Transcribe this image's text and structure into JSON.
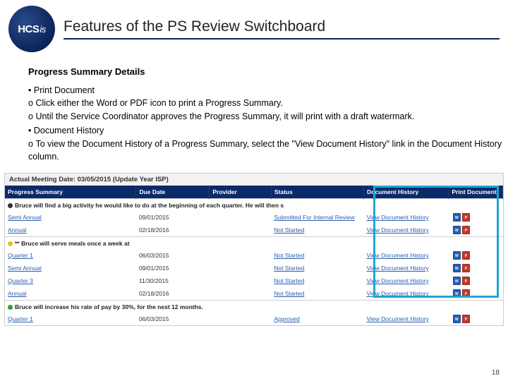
{
  "logo_text": "HCS",
  "logo_suffix": "is",
  "page_title": "Features of the PS Review Switchboard",
  "section_subtitle": "Progress Summary Details",
  "bullets": {
    "b1": "Print Document",
    "b1s1": "Click either the Word or PDF icon to print a Progress Summary.",
    "b1s2": "Until the Service Coordinator approves the Progress Summary, it will print with a draft watermark.",
    "b2": "Document History",
    "b2s1": "To view the Document History of a Progress Summary, select the \"View Document History\" link in the Document History column."
  },
  "colors": {
    "header_underline": "#0a2458",
    "table_header_bg": "#0a2a6a",
    "highlight_border": "#1ba8d4",
    "link": "#2a5db0"
  },
  "screenshot": {
    "meeting_bar": "Actual Meeting Date: 03/05/2015 (Update Year ISP)",
    "columns": {
      "c1": "Progress Summary",
      "c2": "Due Date",
      "c3": "Provider",
      "c4": "Status",
      "c5": "Document History",
      "c6": "Print Document"
    },
    "link_label": "View Document History",
    "groups": [
      {
        "dot": "black",
        "label": "Bruce will find a big activity he would like to do at the beginning of each quarter. He will then s",
        "rows": [
          {
            "ps": "Semi Annual",
            "due": "09/01/2015",
            "provider": "",
            "status": "Submitted For Internal Review"
          },
          {
            "ps": "Annual",
            "due": "02/18/2016",
            "provider": "",
            "status": "Not Started"
          }
        ]
      },
      {
        "dot": "yellow",
        "label": "** Bruce will serve meals once a week at",
        "rows": [
          {
            "ps": "Quarter 1",
            "due": "06/03/2015",
            "provider": "",
            "status": "Not Started"
          },
          {
            "ps": "Semi Annual",
            "due": "09/01/2015",
            "provider": "",
            "status": "Not Started"
          },
          {
            "ps": "Quarter 3",
            "due": "11/30/2015",
            "provider": "",
            "status": "Not Started"
          },
          {
            "ps": "Annual",
            "due": "02/18/2016",
            "provider": "",
            "status": "Not Started"
          }
        ]
      },
      {
        "dot": "green",
        "label": "Bruce will increase his rate of pay by 30%, for the next 12 months.",
        "rows": [
          {
            "ps": "Quarter 1",
            "due": "06/03/2015",
            "provider": "",
            "status": "Approved"
          }
        ]
      }
    ]
  },
  "page_number": "18"
}
